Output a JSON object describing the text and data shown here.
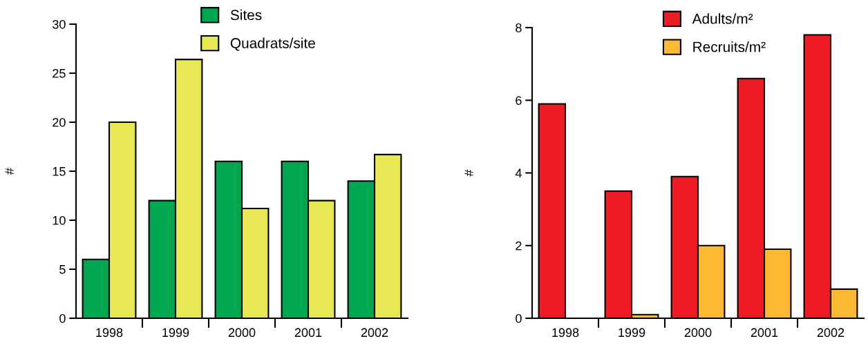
{
  "chart_data": [
    {
      "type": "bar",
      "ylabel": "#",
      "categories": [
        "1998",
        "1999",
        "2000",
        "2001",
        "2002"
      ],
      "series": [
        {
          "name": "Sites",
          "color": "#00a650",
          "values": [
            6,
            12,
            16,
            16,
            14
          ]
        },
        {
          "name": "Quadrats/site",
          "color": "#e8e854",
          "values": [
            20,
            26.4,
            11.2,
            12,
            16.7
          ]
        }
      ],
      "ylim": [
        0,
        30
      ],
      "yticks": [
        0,
        5,
        10,
        15,
        20,
        25,
        30
      ],
      "grid": false,
      "legend": "top"
    },
    {
      "type": "bar",
      "ylabel": "#",
      "categories": [
        "1998",
        "1999",
        "2000",
        "2001",
        "2002"
      ],
      "series": [
        {
          "name": "Adults/m²",
          "color": "#ed1c24",
          "values": [
            5.9,
            3.5,
            3.9,
            6.6,
            7.8
          ]
        },
        {
          "name": "Recruits/m²",
          "color": "#fdb933",
          "values": [
            null,
            0.1,
            2.0,
            1.9,
            0.8
          ]
        }
      ],
      "ylim": [
        0,
        8
      ],
      "yticks": [
        0,
        2,
        4,
        6,
        8
      ],
      "grid": false,
      "legend": "top"
    }
  ]
}
